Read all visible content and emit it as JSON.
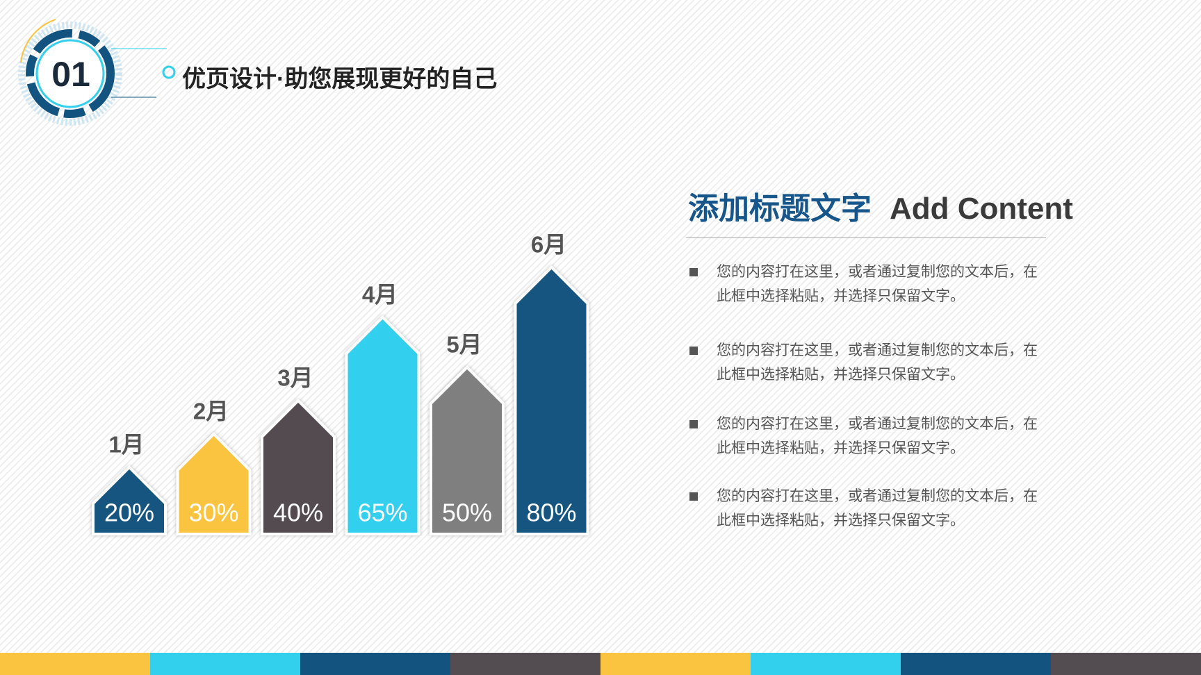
{
  "header": {
    "number": "01",
    "title": "优页设计·助您展现更好的自己"
  },
  "chart_data": {
    "type": "bar",
    "categories": [
      "1月",
      "2月",
      "3月",
      "4月",
      "5月",
      "6月"
    ],
    "values": [
      20,
      30,
      40,
      65,
      50,
      80
    ],
    "value_labels": [
      "20%",
      "30%",
      "40%",
      "65%",
      "50%",
      "80%"
    ],
    "colors": [
      "#12547f",
      "#fbc440",
      "#534c50",
      "#33d0ee",
      "#7f7f7f",
      "#12547f"
    ]
  },
  "panel": {
    "heading_cn": "添加标题文字",
    "heading_en": "Add Content",
    "bullets": [
      [
        "您的内容打在这里，或者通过复制您的文本后，在",
        "此框中选择粘贴，并选择只保留文字。"
      ],
      [
        "您的内容打在这里，或者通过复制您的文本后，在",
        "此框中选择粘贴，并选择只保留文字。"
      ],
      [
        "您的内容打在这里，或者通过复制您的文本后，在",
        "此框中选择粘贴，并选择只保留文字。"
      ],
      [
        "您的内容打在这里，或者通过复制您的文本后，在",
        "此框中选择粘贴，并选择只保留文字。"
      ]
    ]
  }
}
